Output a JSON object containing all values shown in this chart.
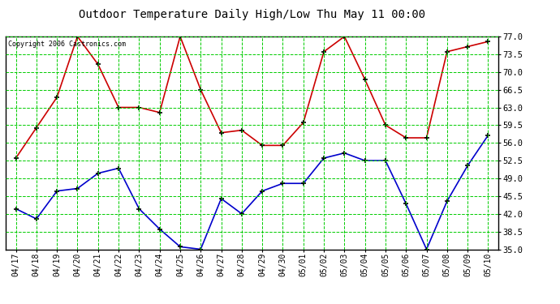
{
  "title": "Outdoor Temperature Daily High/Low Thu May 11 00:00",
  "copyright": "Copyright 2006 Castronics.com",
  "labels": [
    "04/17",
    "04/18",
    "04/19",
    "04/20",
    "04/21",
    "04/22",
    "04/23",
    "04/24",
    "04/25",
    "04/26",
    "04/27",
    "04/28",
    "04/29",
    "04/30",
    "05/01",
    "05/02",
    "05/03",
    "05/04",
    "05/05",
    "05/06",
    "05/07",
    "05/08",
    "05/09",
    "05/10"
  ],
  "high": [
    53.0,
    59.0,
    65.0,
    77.0,
    71.5,
    63.0,
    63.0,
    62.0,
    77.0,
    66.5,
    58.0,
    58.5,
    55.5,
    55.5,
    60.0,
    74.0,
    77.0,
    68.5,
    59.5,
    57.0,
    57.0,
    74.0,
    75.0,
    76.0
  ],
  "low": [
    43.0,
    41.0,
    46.5,
    47.0,
    50.0,
    51.0,
    43.0,
    39.0,
    35.5,
    35.0,
    45.0,
    42.0,
    46.5,
    48.0,
    48.0,
    53.0,
    54.0,
    52.5,
    52.5,
    44.0,
    35.0,
    44.5,
    51.5,
    57.5
  ],
  "high_color": "#cc0000",
  "low_color": "#0000cc",
  "bg_color": "#ffffff",
  "plot_bg_color": "#ffffff",
  "grid_color": "#00cc00",
  "border_color": "#000000",
  "title_color": "#000000",
  "copyright_color": "#000000",
  "ylim": [
    35.0,
    77.0
  ],
  "yticks": [
    35.0,
    38.5,
    42.0,
    45.5,
    49.0,
    52.5,
    56.0,
    59.5,
    63.0,
    66.5,
    70.0,
    73.5,
    77.0
  ],
  "title_fontsize": 10,
  "xlabel_fontsize": 7,
  "ylabel_fontsize": 7.5
}
